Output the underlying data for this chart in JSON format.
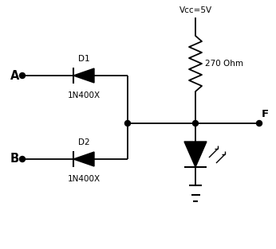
{
  "bg_color": "#ffffff",
  "line_color": "#000000",
  "dot_color": "#000000",
  "label_A": "A",
  "label_B": "B",
  "label_D1": "D1",
  "label_D2": "D2",
  "label_1N400X": "1N400X",
  "label_vcc": "Vcc=5V",
  "label_R": "270 Ohm",
  "label_F": "F",
  "figsize": [
    3.46,
    3.13
  ],
  "dpi": 100
}
